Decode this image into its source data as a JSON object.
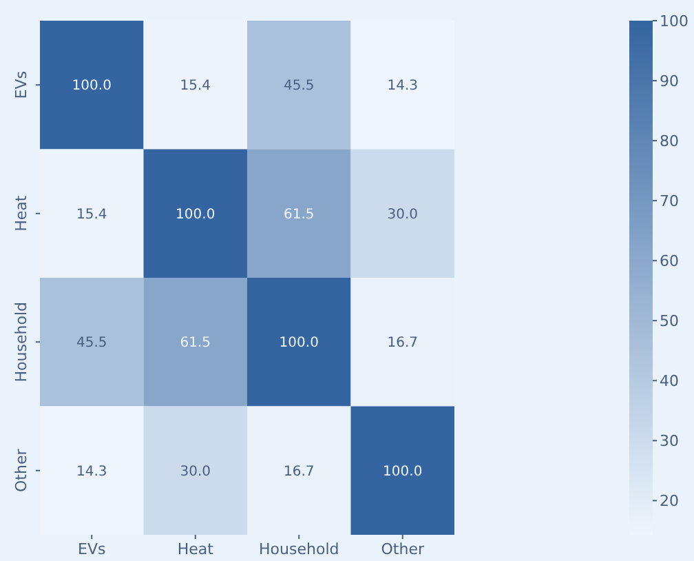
{
  "chart_data": {
    "type": "heatmap",
    "categories": [
      "EVs",
      "Heat",
      "Household",
      "Other"
    ],
    "y_categories": [
      "EVs",
      "Heat",
      "Household",
      "Other"
    ],
    "cells": [
      [
        100.0,
        15.4,
        45.5,
        14.3
      ],
      [
        15.4,
        100.0,
        61.5,
        30.0
      ],
      [
        45.5,
        61.5,
        100.0,
        16.7
      ],
      [
        14.3,
        30.0,
        16.7,
        100.0
      ]
    ],
    "cell_labels": [
      [
        "100.0",
        "15.4",
        "45.5",
        "14.3"
      ],
      [
        "15.4",
        "100.0",
        "61.5",
        "30.0"
      ],
      [
        "45.5",
        "61.5",
        "100.0",
        "16.7"
      ],
      [
        "14.3",
        "30.0",
        "16.7",
        "100.0"
      ]
    ],
    "clim": [
      14.3,
      100
    ],
    "cticks": [
      20,
      30,
      40,
      50,
      60,
      70,
      80,
      90,
      100
    ],
    "data_labels": true
  }
}
